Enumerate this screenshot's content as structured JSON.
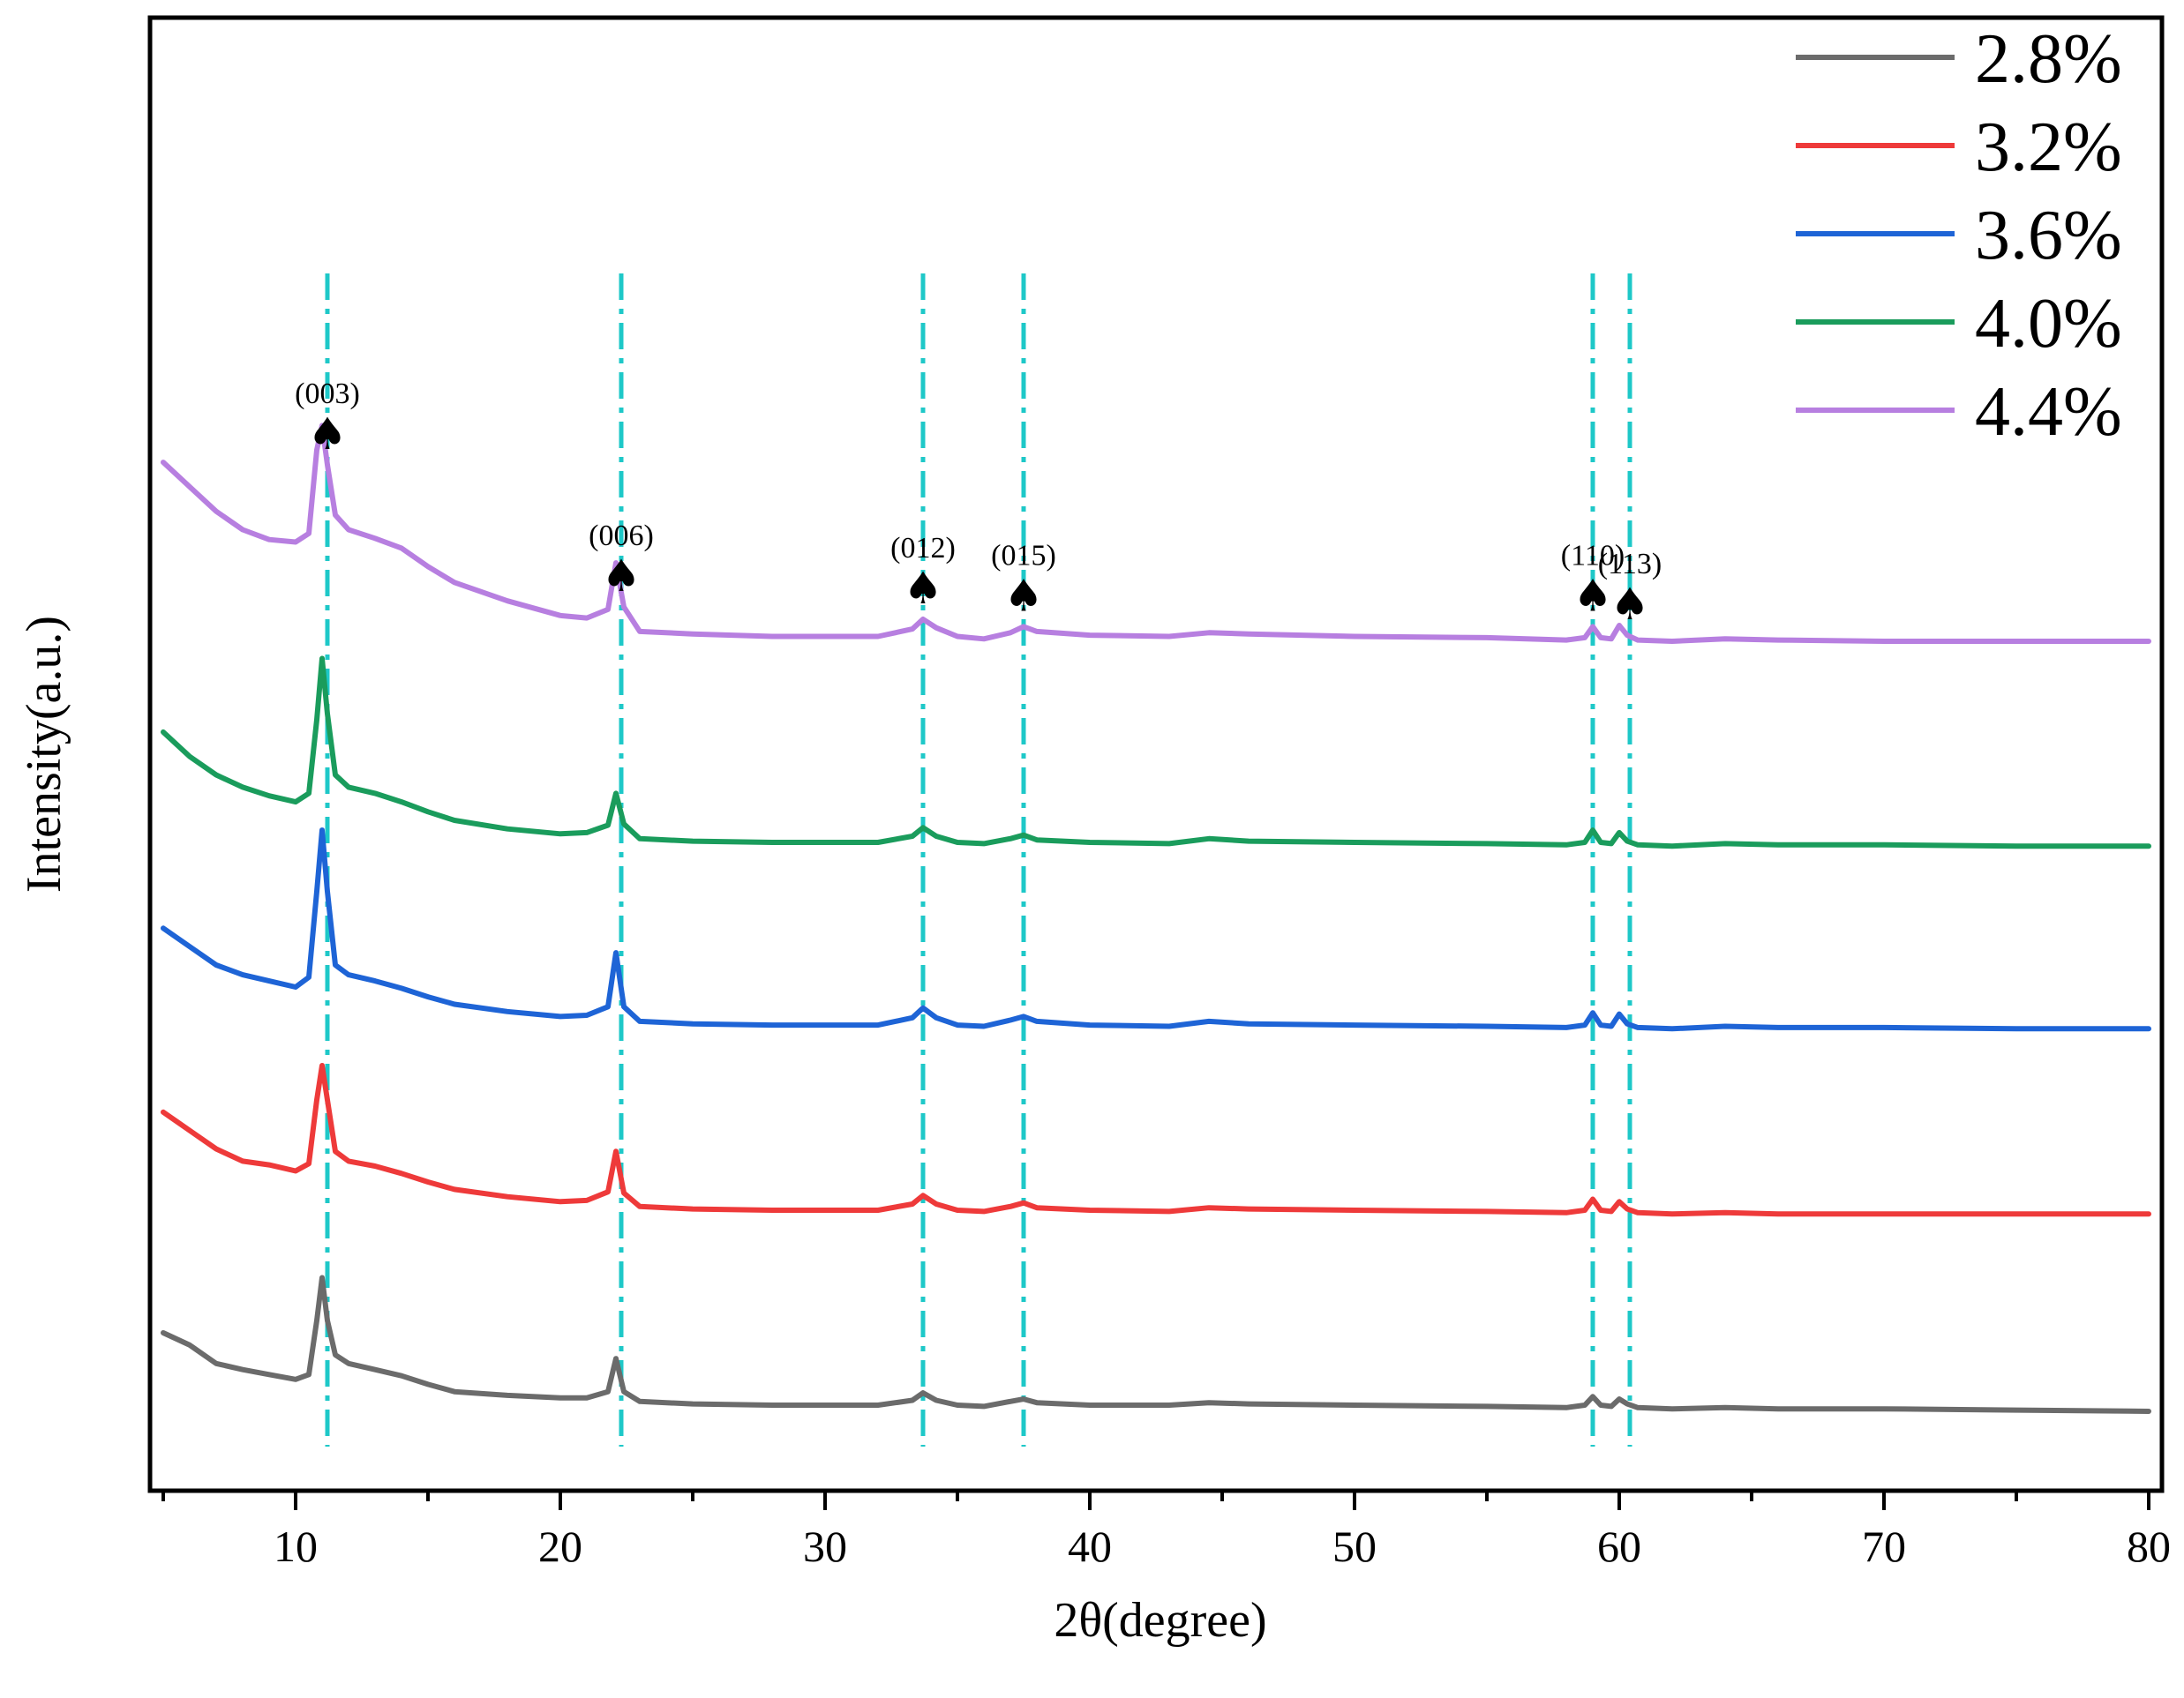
{
  "chart_data": {
    "type": "line",
    "xlabel": "2θ(degree)",
    "ylabel": "Intensity(a.u.)",
    "xlim": [
      4.5,
      80.5
    ],
    "ylim": [
      0,
      1000
    ],
    "x_ticks": [
      10,
      20,
      30,
      40,
      50,
      60,
      70,
      80
    ],
    "x_tick_labels": [
      "10",
      "20",
      "30",
      "40",
      "50",
      "60",
      "70",
      "80"
    ],
    "x_minor_step": 5,
    "y_ticks": "none",
    "grid": false,
    "legend_position": "top-right",
    "series": [
      {
        "name": "2.8%",
        "color": "#6b6b6b",
        "x": [
          5,
          6,
          7,
          8,
          9,
          10,
          10.5,
          10.8,
          11.0,
          11.2,
          11.5,
          12,
          13,
          14,
          15,
          16,
          18,
          20,
          21,
          21.8,
          22.1,
          22.4,
          23,
          25,
          28,
          30,
          32,
          33.3,
          33.7,
          34.2,
          35,
          36,
          37,
          37.5,
          38,
          40,
          43,
          44.5,
          46,
          50,
          55,
          58,
          58.7,
          59.0,
          59.3,
          59.7,
          60.0,
          60.3,
          60.7,
          62,
          64,
          66,
          70,
          75,
          80
        ],
        "values": [
          100,
          90,
          75,
          70,
          66,
          62,
          66,
          110,
          145,
          110,
          82,
          75,
          70,
          65,
          58,
          52,
          49,
          47,
          47,
          52,
          79,
          52,
          44,
          42,
          41,
          41,
          41,
          45,
          51,
          45,
          41,
          40,
          44,
          46,
          43,
          41,
          41,
          43,
          42,
          41,
          40,
          39,
          41,
          48,
          41,
          40,
          46,
          42,
          39,
          38,
          39,
          38,
          38,
          37,
          36
        ]
      },
      {
        "name": "3.2%",
        "color": "#ee3a3a",
        "x": [
          5,
          6,
          7,
          8,
          9,
          10,
          10.5,
          10.8,
          11.0,
          11.2,
          11.5,
          12,
          13,
          14,
          15,
          16,
          18,
          20,
          21,
          21.8,
          22.1,
          22.4,
          23,
          25,
          28,
          30,
          32,
          33.3,
          33.7,
          34.2,
          35,
          36,
          37,
          37.5,
          38,
          40,
          43,
          44.5,
          46,
          50,
          55,
          58,
          58.7,
          59.0,
          59.3,
          59.7,
          60.0,
          60.3,
          60.7,
          62,
          64,
          66,
          70,
          75,
          80
        ],
        "values": [
          280,
          265,
          250,
          240,
          237,
          232,
          238,
          290,
          318,
          290,
          248,
          240,
          236,
          230,
          223,
          217,
          211,
          207,
          208,
          215,
          248,
          214,
          203,
          201,
          200,
          200,
          200,
          205,
          212,
          205,
          200,
          199,
          203,
          206,
          202,
          200,
          199,
          202,
          201,
          200,
          199,
          198,
          200,
          209,
          200,
          199,
          207,
          201,
          198,
          197,
          198,
          197,
          197,
          197,
          197
        ]
      },
      {
        "name": "3.6%",
        "color": "#1e64d6",
        "x": [
          5,
          6,
          7,
          8,
          9,
          10,
          10.5,
          10.8,
          11.0,
          11.2,
          11.5,
          12,
          13,
          14,
          15,
          16,
          18,
          20,
          21,
          21.8,
          22.1,
          22.4,
          23,
          25,
          28,
          30,
          32,
          33.3,
          33.7,
          34.2,
          35,
          36,
          37,
          37.5,
          38,
          40,
          43,
          44.5,
          46,
          50,
          55,
          58,
          58.7,
          59.0,
          59.3,
          59.7,
          60.0,
          60.3,
          60.7,
          62,
          64,
          66,
          70,
          75,
          80
        ],
        "values": [
          430,
          415,
          400,
          392,
          387,
          382,
          390,
          460,
          510,
          460,
          400,
          392,
          387,
          381,
          374,
          368,
          362,
          358,
          359,
          366,
          410,
          366,
          354,
          352,
          351,
          351,
          351,
          357,
          365,
          357,
          351,
          350,
          355,
          358,
          354,
          351,
          350,
          354,
          352,
          351,
          350,
          349,
          351,
          361,
          351,
          350,
          360,
          352,
          349,
          348,
          350,
          349,
          349,
          348,
          348
        ]
      },
      {
        "name": "4.0%",
        "color": "#1a9c5c",
        "x": [
          5,
          6,
          7,
          8,
          9,
          10,
          10.5,
          10.8,
          11.0,
          11.2,
          11.5,
          12,
          13,
          14,
          15,
          16,
          18,
          20,
          21,
          21.8,
          22.1,
          22.4,
          23,
          25,
          28,
          30,
          32,
          33.3,
          33.7,
          34.2,
          35,
          36,
          37,
          37.5,
          38,
          40,
          43,
          44.5,
          46,
          50,
          55,
          58,
          58.7,
          59.0,
          59.3,
          59.7,
          60.0,
          60.3,
          60.7,
          62,
          64,
          66,
          70,
          75,
          80
        ],
        "values": [
          590,
          570,
          555,
          545,
          538,
          533,
          540,
          600,
          650,
          605,
          555,
          545,
          540,
          533,
          525,
          518,
          511,
          507,
          508,
          514,
          540,
          515,
          503,
          501,
          500,
          500,
          500,
          505,
          512,
          505,
          500,
          499,
          503,
          506,
          502,
          500,
          499,
          503,
          501,
          500,
          499,
          498,
          500,
          510,
          500,
          499,
          508,
          501,
          498,
          497,
          499,
          498,
          498,
          497,
          497
        ]
      },
      {
        "name": "4.4%",
        "color": "#b77fe0",
        "x": [
          5,
          6,
          7,
          8,
          9,
          10,
          10.5,
          10.8,
          11.0,
          11.2,
          11.5,
          12,
          13,
          14,
          15,
          16,
          18,
          20,
          21,
          21.8,
          22.1,
          22.4,
          23,
          25,
          28,
          30,
          32,
          33.3,
          33.7,
          34.2,
          35,
          36,
          37,
          37.5,
          38,
          40,
          43,
          44.5,
          46,
          50,
          55,
          58,
          58.7,
          59.0,
          59.3,
          59.7,
          60.0,
          60.3,
          60.7,
          62,
          64,
          66,
          70,
          75,
          80
        ],
        "values": [
          810,
          790,
          770,
          755,
          747,
          745,
          752,
          820,
          840,
          808,
          767,
          755,
          748,
          740,
          725,
          712,
          697,
          685,
          683,
          690,
          728,
          692,
          672,
          670,
          668,
          668,
          668,
          674,
          682,
          675,
          668,
          666,
          671,
          676,
          672,
          669,
          668,
          671,
          670,
          668,
          667,
          665,
          667,
          676,
          667,
          666,
          677,
          669,
          665,
          664,
          666,
          665,
          664,
          664,
          664
        ]
      }
    ],
    "reference_lines": [
      11.2,
      22.3,
      33.7,
      37.5,
      59.0,
      60.4
    ],
    "peak_labels": [
      {
        "x": 11.2,
        "text": "(003)",
        "marker": "♠"
      },
      {
        "x": 22.3,
        "text": "(006)",
        "marker": "♠"
      },
      {
        "x": 33.7,
        "text": "(012)",
        "marker": "♠"
      },
      {
        "x": 37.5,
        "text": "(015)",
        "marker": "♠"
      },
      {
        "x": 59.0,
        "text": "(110)",
        "marker": "♠"
      },
      {
        "x": 60.4,
        "text": "(113)",
        "marker": "♠"
      }
    ],
    "reference_line_color": "#1ec8c8"
  }
}
